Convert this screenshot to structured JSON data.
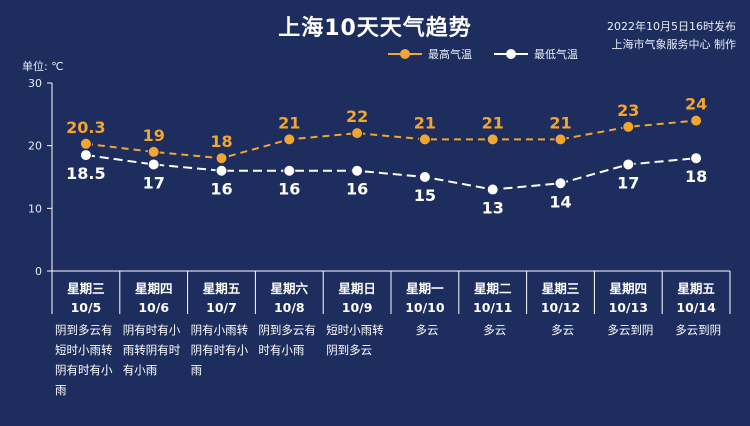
{
  "header": {
    "title": "上海10天天气趋势",
    "publish_time": "2022年10月5日16时发布",
    "publisher": "上海市气象服务中心 制作",
    "unit": "单位: ℃"
  },
  "colors": {
    "background": "#1d2d5e",
    "high": "#f2a531",
    "low": "#ffffff",
    "axis": "#ffffff"
  },
  "chart_data": {
    "type": "line",
    "y_ticks": [
      "0",
      "10",
      "20",
      "30"
    ],
    "ylim": [
      0,
      30
    ],
    "grid": false,
    "legend_position": "top-right",
    "categories": [
      {
        "weekday": "星期三",
        "date": "10/5",
        "condition": "阴到多云有短时小雨转阴有时有小雨"
      },
      {
        "weekday": "星期四",
        "date": "10/6",
        "condition": "阴有时有小雨转阴有时有小雨"
      },
      {
        "weekday": "星期五",
        "date": "10/7",
        "condition": "阴有小雨转阴有时有小雨"
      },
      {
        "weekday": "星期六",
        "date": "10/8",
        "condition": "阴到多云有时有小雨"
      },
      {
        "weekday": "星期日",
        "date": "10/9",
        "condition": "短时小雨转阴到多云"
      },
      {
        "weekday": "星期一",
        "date": "10/10",
        "condition": "多云"
      },
      {
        "weekday": "星期二",
        "date": "10/11",
        "condition": "多云"
      },
      {
        "weekday": "星期三",
        "date": "10/12",
        "condition": "多云"
      },
      {
        "weekday": "星期四",
        "date": "10/13",
        "condition": "多云到阴"
      },
      {
        "weekday": "星期五",
        "date": "10/14",
        "condition": "多云到阴"
      }
    ],
    "series": [
      {
        "name": "最高气温",
        "values": [
          20.3,
          19,
          18,
          21,
          22,
          21,
          21,
          21,
          23,
          24
        ],
        "labels": [
          "20.3",
          "19",
          "18",
          "21",
          "22",
          "21",
          "21",
          "21",
          "23",
          "24"
        ]
      },
      {
        "name": "最低气温",
        "values": [
          18.5,
          17,
          16,
          16,
          16,
          15,
          13,
          14,
          17,
          18
        ],
        "labels": [
          "18.5",
          "17",
          "16",
          "16",
          "16",
          "15",
          "13",
          "14",
          "17",
          "18"
        ]
      }
    ]
  }
}
